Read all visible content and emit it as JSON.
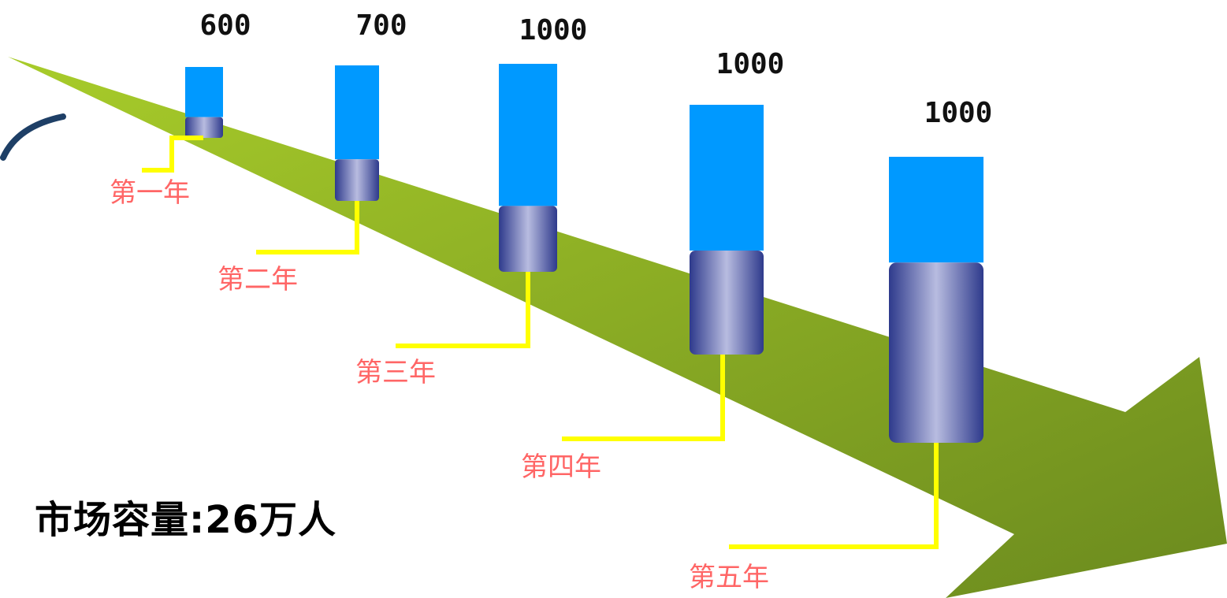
{
  "chart_data": {
    "type": "bar",
    "categories": [
      "第一年",
      "第二年",
      "第三年",
      "第四年",
      "第五年"
    ],
    "series": [
      {
        "values": [
          600,
          700,
          1000,
          1000,
          1000
        ]
      },
      {
        "values": [
          60,
          120,
          190,
          300,
          520
        ]
      }
    ],
    "value_labels": [
      "600",
      "700",
      "1000",
      "1000",
      "1000"
    ],
    "grid": false,
    "colors": {
      "total_bar": "#0099ff",
      "segment_dark": "#2e3a8c",
      "segment_light": "#b8bce0",
      "leader_line": "#ffff00",
      "category_text": "#ff6666",
      "arrow_light": "#a8cc2a",
      "arrow_dark": "#6b8a1e",
      "swoosh": "#1e3f66"
    }
  },
  "annotation": {
    "market_capacity": "市场容量:26万人"
  }
}
